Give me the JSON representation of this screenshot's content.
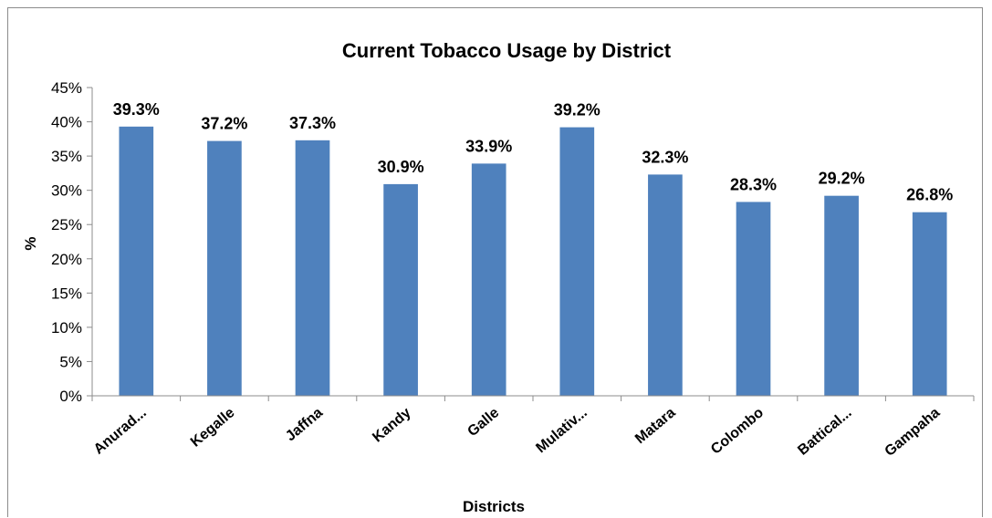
{
  "chart_data": {
    "type": "bar",
    "title": "Current Tobacco Usage by District",
    "xlabel": "Districts",
    "ylabel": "%",
    "categories": [
      "Anurad...",
      "Kegalle",
      "Jaffna",
      "Kandy",
      "Galle",
      "Mulativ...",
      "Matara",
      "Colombo",
      "Battical...",
      "Gampaha"
    ],
    "values": [
      39.3,
      37.2,
      37.3,
      30.9,
      33.9,
      39.2,
      32.3,
      28.3,
      29.2,
      26.8
    ],
    "data_labels": [
      "39.3%",
      "37.2%",
      "37.3%",
      "30.9%",
      "33.9%",
      "39.2%",
      "32.3%",
      "28.3%",
      "29.2%",
      "26.8%"
    ],
    "yticks": [
      "0%",
      "5%",
      "10%",
      "15%",
      "20%",
      "25%",
      "30%",
      "35%",
      "40%",
      "45%"
    ],
    "ylim": [
      0,
      45
    ],
    "grid": false,
    "legend": "none",
    "bar_color": "#4f81bd"
  }
}
